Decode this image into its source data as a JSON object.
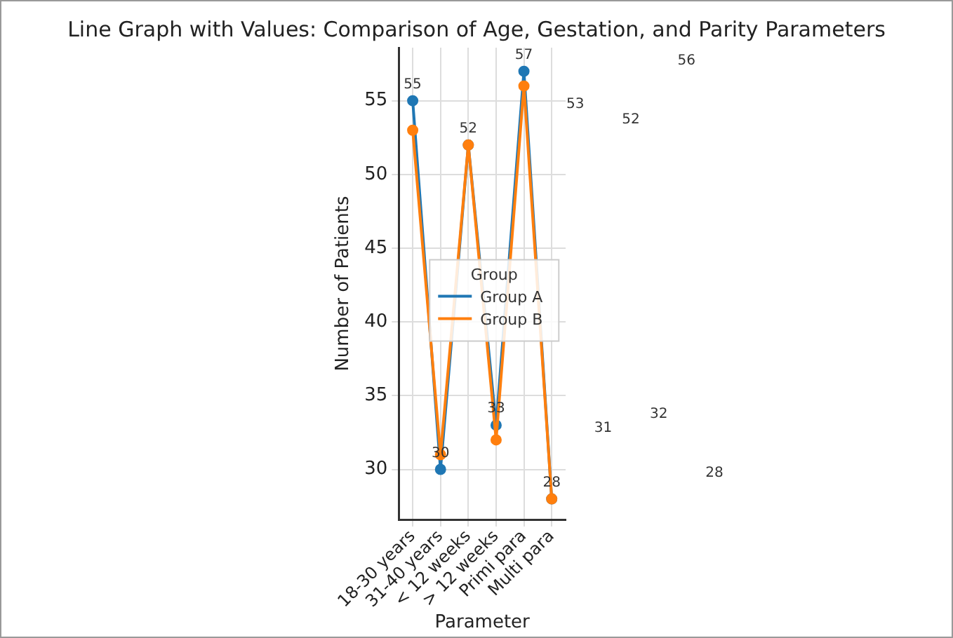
{
  "chart_data": {
    "type": "line",
    "title": "Line Graph with Values: Comparison of Age, Gestation, and Parity Parameters",
    "xlabel": "Parameter",
    "ylabel": "Number of Patients",
    "legend_title": "Group",
    "categories": [
      "18-30 years",
      "31-40 years",
      "< 12 weeks",
      "> 12 weeks",
      "Primi para",
      "Multi para"
    ],
    "series": [
      {
        "name": "Group A",
        "color": "#1f77b4",
        "values": [
          55,
          30,
          52,
          33,
          57,
          28
        ],
        "value_labels": [
          "55",
          "30",
          "52",
          "33",
          "57",
          "28"
        ]
      },
      {
        "name": "Group B",
        "color": "#ff7f0e",
        "values": [
          53,
          31,
          52,
          32,
          56,
          28
        ]
      }
    ],
    "annotations": [
      "53",
      "31",
      "52",
      "32",
      "56",
      "28"
    ],
    "ylim": [
      26.6,
      58.6
    ],
    "yticks": [
      30,
      35,
      40,
      45,
      50,
      55
    ],
    "grid": true,
    "legend": "center",
    "marker": "circle",
    "line_style": "solid"
  }
}
